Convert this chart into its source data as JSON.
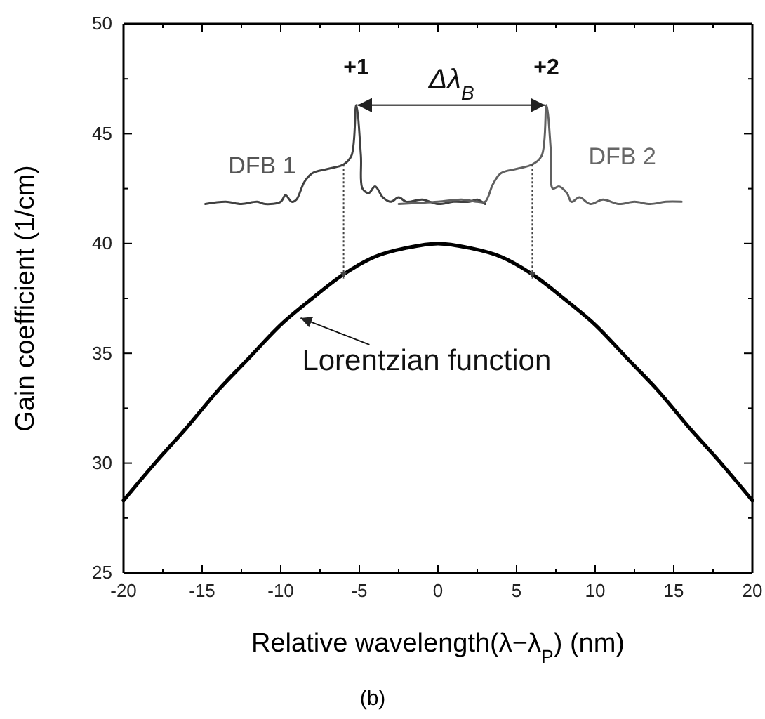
{
  "chart_data": {
    "type": "line",
    "xlabel": "Relative wavelength(λ−λ$_{P}$) (nm)",
    "ylabel": "Gain coefficient (1/cm)",
    "xlim": [
      -20,
      20
    ],
    "ylim": [
      25,
      50
    ],
    "xticks": [
      -20,
      -15,
      -10,
      -5,
      0,
      5,
      10,
      15,
      20
    ],
    "yticks": [
      25,
      30,
      35,
      40,
      45,
      50
    ],
    "grid": false,
    "marker": "none",
    "line_style": "solid",
    "series": [
      {
        "color": "#000000",
        "x": [
          -20,
          -18,
          -16,
          -14,
          -12,
          -10,
          -8,
          -6,
          -4,
          -2,
          0,
          2,
          4,
          6,
          8,
          10,
          12,
          14,
          16,
          18,
          20
        ],
        "values": [
          28.3,
          30.0,
          31.6,
          33.3,
          34.8,
          36.3,
          37.5,
          38.6,
          39.4,
          39.8,
          40,
          39.8,
          39.4,
          38.6,
          37.5,
          36.3,
          34.8,
          33.3,
          31.6,
          30.0,
          28.3
        ]
      },
      {
        "color": "#404040",
        "x": [
          -14.8,
          -13.5,
          -12.5,
          -11.5,
          -11,
          -10,
          -9.7,
          -9.3,
          -9,
          -8.5,
          -8,
          -7,
          -6,
          -5.5,
          -5.2,
          -4.9,
          -4.8,
          -4.4,
          -4,
          -3.5,
          -3,
          -2.5,
          -2,
          -1,
          0,
          1,
          2,
          2.5,
          3
        ],
        "values": [
          41.8,
          41.9,
          41.8,
          41.9,
          41.8,
          41.9,
          42.2,
          41.9,
          42.0,
          42.8,
          43.2,
          43.4,
          43.6,
          44.0,
          46.3,
          44.0,
          42.5,
          42.3,
          42.6,
          42.1,
          41.9,
          42.1,
          41.9,
          42.0,
          41.8,
          41.9,
          41.9,
          42.0,
          41.8
        ]
      },
      {
        "color": "#606060",
        "x": [
          -2.5,
          0,
          1.5,
          2.5,
          3,
          3.5,
          4,
          5,
          6,
          6.6,
          6.9,
          7.2,
          7.3,
          7.7,
          8.2,
          8.5,
          9,
          9.7,
          10.5,
          11.5,
          12.5,
          13.5,
          14.5,
          15.5
        ],
        "values": [
          41.8,
          41.9,
          42.0,
          41.9,
          41.9,
          42.7,
          43.2,
          43.4,
          43.6,
          44.0,
          46.3,
          44.0,
          42.5,
          42.6,
          42.3,
          41.9,
          42.1,
          41.8,
          42.0,
          41.8,
          41.9,
          41.8,
          41.9,
          41.9
        ]
      }
    ],
    "annotations": [
      {
        "text": "+1",
        "x": -5.2,
        "y": 46.3
      },
      {
        "text": "+2",
        "x": 6.9,
        "y": 46.3
      },
      {
        "text": "DFB 1",
        "x": -8.5,
        "y": 43.2
      },
      {
        "text": "Lorentzian function",
        "x": -9,
        "y": 36.8
      },
      "Δλ$_{B}$",
      "DFB 2",
      "(b)"
    ]
  }
}
